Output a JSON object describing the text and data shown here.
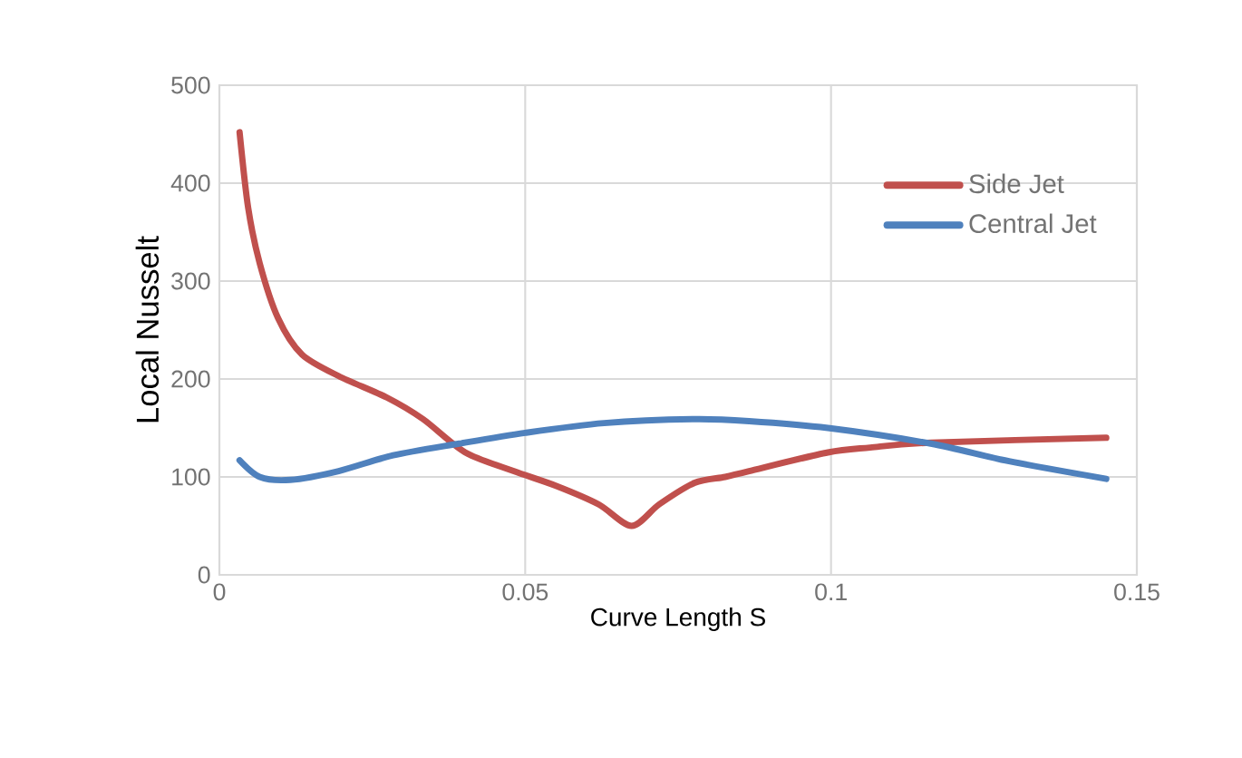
{
  "chart_data": {
    "type": "line",
    "xlabel": "Curve Length S",
    "ylabel": "Local Nusselt",
    "xlim": [
      0,
      0.15
    ],
    "ylim": [
      0,
      500
    ],
    "xticks": [
      0,
      0.05,
      0.1,
      0.15
    ],
    "yticks": [
      0,
      100,
      200,
      300,
      400,
      500
    ],
    "grid": true,
    "legend": "top right",
    "line_style": "solid",
    "marker": "none",
    "series": [
      {
        "name": "Side Jet",
        "color": "#c0504d",
        "x": [
          0.0033,
          0.0047,
          0.0066,
          0.0096,
          0.0135,
          0.0195,
          0.0274,
          0.0333,
          0.0402,
          0.0481,
          0.055,
          0.062,
          0.0674,
          0.0719,
          0.0777,
          0.0827,
          0.0866,
          0.0995,
          0.1064,
          0.1163,
          0.145
        ],
        "values": [
          452,
          375,
          318,
          262,
          225,
          203,
          181,
          159,
          125,
          106,
          91,
          72,
          50,
          72,
          94,
          100,
          106,
          125,
          130,
          135,
          140
        ]
      },
      {
        "name": "Central Jet",
        "color": "#4f81bd",
        "x": [
          0.0033,
          0.0066,
          0.0116,
          0.0195,
          0.0284,
          0.0392,
          0.05,
          0.0629,
          0.0777,
          0.0866,
          0.0995,
          0.1163,
          0.1291,
          0.145
        ],
        "values": [
          117,
          100,
          97,
          106,
          122,
          134,
          145,
          155,
          159,
          157,
          150,
          134,
          116,
          98
        ]
      }
    ]
  }
}
